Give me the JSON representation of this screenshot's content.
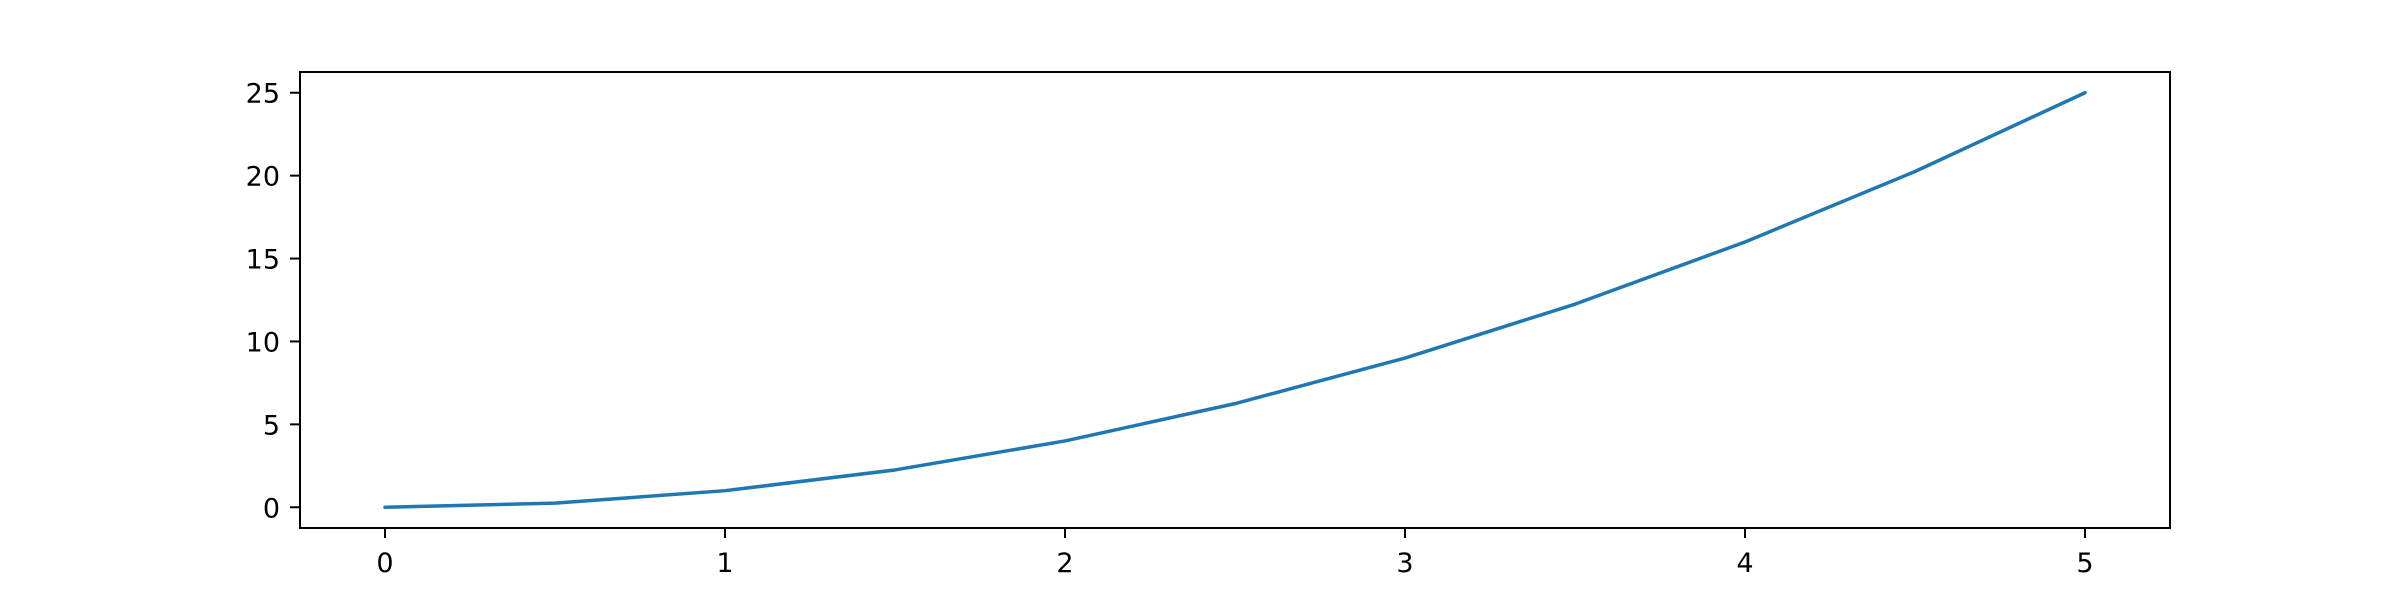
{
  "chart_data": {
    "type": "line",
    "title": "",
    "xlabel": "",
    "ylabel": "",
    "x": [
      0,
      0.5,
      1,
      1.5,
      2,
      2.5,
      3,
      3.5,
      4,
      4.5,
      5
    ],
    "series": [
      {
        "values": [
          0,
          0.25,
          1,
          2.25,
          4,
          6.25,
          9,
          12.25,
          16,
          20.25,
          25
        ],
        "color": "#1f77b4"
      }
    ],
    "xlim": [
      -0.25,
      5.25
    ],
    "ylim": [
      -1.25,
      26.25
    ],
    "x_ticks": [
      0,
      1,
      2,
      3,
      4,
      5
    ],
    "x_tick_labels": [
      "0",
      "1",
      "2",
      "3",
      "4",
      "5"
    ],
    "y_ticks": [
      0,
      5,
      10,
      15,
      20,
      25
    ],
    "y_tick_labels": [
      "0",
      "5",
      "10",
      "15",
      "20",
      "25"
    ],
    "grid": false,
    "legend": "none"
  }
}
